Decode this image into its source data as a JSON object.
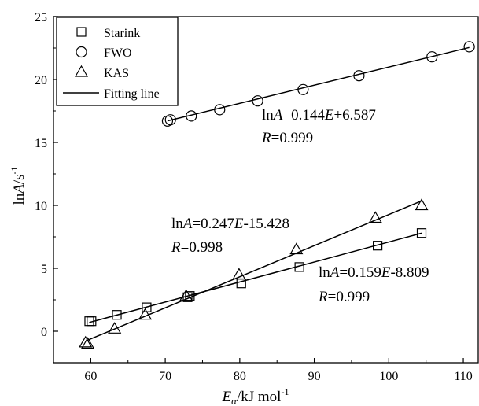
{
  "chart_data": {
    "type": "scatter",
    "xlabel": "Eα/kJ mol-1",
    "ylabel": "lnA/s-1",
    "xlim": [
      55,
      112
    ],
    "ylim": [
      -2.5,
      25
    ],
    "xticks": [
      60,
      70,
      80,
      90,
      100,
      110
    ],
    "yticks": [
      0,
      5,
      10,
      15,
      20,
      25
    ],
    "legend_position": "top-left",
    "legend": {
      "starink": "Starink",
      "fwo": "FWO",
      "kas": "KAS",
      "fit": "Fitting line"
    },
    "series": [
      {
        "name": "Starink",
        "marker": "square",
        "x": [
          59.8,
          60.1,
          63.5,
          67.5,
          73.0,
          73.3,
          80.2,
          88.0,
          98.5,
          104.4
        ],
        "y": [
          0.8,
          0.8,
          1.3,
          1.9,
          2.7,
          2.8,
          3.8,
          5.1,
          6.8,
          7.8
        ],
        "fit": {
          "slope": 0.159,
          "intercept": -8.809,
          "x_range": [
            59.8,
            104.4
          ]
        }
      },
      {
        "name": "FWO",
        "marker": "circle",
        "x": [
          70.3,
          70.7,
          73.5,
          77.3,
          82.4,
          88.5,
          96.0,
          105.8,
          110.8
        ],
        "y": [
          16.7,
          16.8,
          17.1,
          17.6,
          18.3,
          19.2,
          20.3,
          21.8,
          22.6
        ],
        "fit": {
          "slope": 0.144,
          "intercept": 6.587,
          "x_range": [
            70.3,
            110.8
          ]
        }
      },
      {
        "name": "KAS",
        "marker": "triangle",
        "x": [
          59.3,
          59.6,
          63.2,
          67.3,
          72.8,
          79.9,
          87.6,
          98.2,
          104.4
        ],
        "y": [
          -0.9,
          -1.0,
          0.2,
          1.3,
          2.8,
          4.5,
          6.5,
          9.0,
          10.0
        ],
        "fit": {
          "slope": 0.247,
          "intercept": -15.428,
          "x_range": [
            59.5,
            104.4
          ]
        }
      }
    ],
    "annotations": {
      "fwo": {
        "eq_pre": "ln",
        "eq_A": "A",
        "eq_mid": "=0.144",
        "eq_E": "E",
        "eq_post": "+6.587",
        "r_R": "R",
        "r_val": "=0.999"
      },
      "kas": {
        "eq_pre": "ln",
        "eq_A": "A",
        "eq_mid": "=0.247",
        "eq_E": "E",
        "eq_post": "-15.428",
        "r_R": "R",
        "r_val": "=0.998"
      },
      "starink": {
        "eq_pre": "ln",
        "eq_A": "A",
        "eq_mid": "=0.159",
        "eq_E": "E",
        "eq_post": "-8.809",
        "r_R": "R",
        "r_val": "=0.999"
      }
    },
    "axis_text": {
      "x_E": "E",
      "x_sub": "α",
      "x_rest": "/kJ mol",
      "x_sup": "-1",
      "y_ln": "ln",
      "y_A": "A",
      "y_rest": "/s",
      "y_sup": "-1"
    }
  }
}
